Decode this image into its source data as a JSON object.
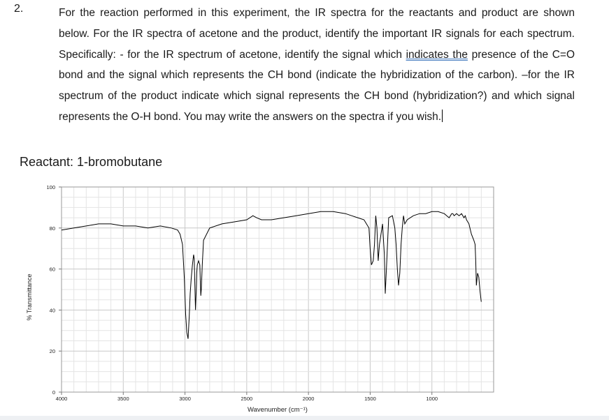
{
  "question": {
    "number": "2.",
    "text_pre": "For the reaction performed in this experiment, the IR spectra for the reactants and product are shown below. For the IR spectra of acetone and the product, identify the important IR signals for each spectrum. Specifically: - for the IR spectrum of acetone, identify the signal which ",
    "text_underlined": "indicates the",
    "text_post": " presence of the C=O bond and the signal which represents the CH bond (indicate the hybridization of the carbon). –for the IR spectrum of the product indicate which signal represents the CH bond (hybridization?) and which signal represents the O-H bond.  You may write the answers on the spectra if you wish."
  },
  "section_title": "Reactant: 1-bromobutane",
  "chart_data": {
    "type": "line",
    "title": "",
    "xlabel": "Wavenumber (cm⁻¹)",
    "ylabel": "% Transmittance",
    "xlim": [
      4000,
      500
    ],
    "ylim": [
      0,
      100
    ],
    "x_ticks": [
      4000,
      3500,
      3000,
      2500,
      2000,
      1500,
      1000
    ],
    "x_tick_labels": [
      "4000",
      "3500",
      "3000",
      "2500",
      "2000",
      "1500",
      "1000"
    ],
    "y_ticks": [
      0,
      20,
      40,
      60,
      80,
      100
    ],
    "y_tick_labels": [
      "0",
      "20",
      "40",
      "60",
      "80",
      "100"
    ],
    "grid": true,
    "series": [
      {
        "line_color": "#000000",
        "x": [
          4000,
          3900,
          3800,
          3700,
          3600,
          3500,
          3400,
          3300,
          3200,
          3110,
          3060,
          3040,
          3020,
          3005,
          2995,
          2985,
          2975,
          2965,
          2958,
          2950,
          2940,
          2930,
          2925,
          2920,
          2915,
          2910,
          2905,
          2900,
          2890,
          2880,
          2875,
          2872,
          2868,
          2860,
          2850,
          2800,
          2700,
          2600,
          2500,
          2450,
          2420,
          2380,
          2300,
          2200,
          2100,
          2000,
          1900,
          1800,
          1700,
          1650,
          1600,
          1550,
          1530,
          1510,
          1500,
          1490,
          1475,
          1465,
          1455,
          1445,
          1435,
          1425,
          1400,
          1385,
          1378,
          1370,
          1350,
          1320,
          1300,
          1290,
          1280,
          1270,
          1260,
          1250,
          1240,
          1230,
          1220,
          1200,
          1150,
          1100,
          1050,
          1000,
          950,
          900,
          880,
          860,
          850,
          840,
          830,
          820,
          800,
          780,
          760,
          740,
          730,
          720,
          700,
          680,
          660,
          650,
          645,
          640,
          630,
          620,
          610,
          600
        ],
        "y": [
          79,
          80,
          81,
          82,
          82,
          81,
          81,
          80,
          81,
          80,
          79,
          77,
          72,
          55,
          38,
          29,
          26,
          38,
          48,
          55,
          62,
          67,
          65,
          52,
          40,
          48,
          58,
          62,
          64,
          62,
          53,
          47,
          50,
          62,
          74,
          80,
          82,
          83,
          84,
          86,
          85,
          84,
          84,
          85,
          86,
          87,
          88,
          88,
          87,
          86,
          85,
          84,
          82,
          80,
          70,
          62,
          64,
          72,
          86,
          80,
          64,
          72,
          82,
          67,
          48,
          58,
          85,
          86,
          80,
          72,
          60,
          52,
          58,
          72,
          80,
          86,
          82,
          84,
          86,
          87,
          87,
          88,
          88,
          87,
          86,
          85,
          86,
          87,
          87,
          86,
          87,
          86,
          87,
          85,
          86,
          84,
          82,
          77,
          74,
          72,
          64,
          52,
          58,
          56,
          49,
          44
        ]
      }
    ]
  }
}
